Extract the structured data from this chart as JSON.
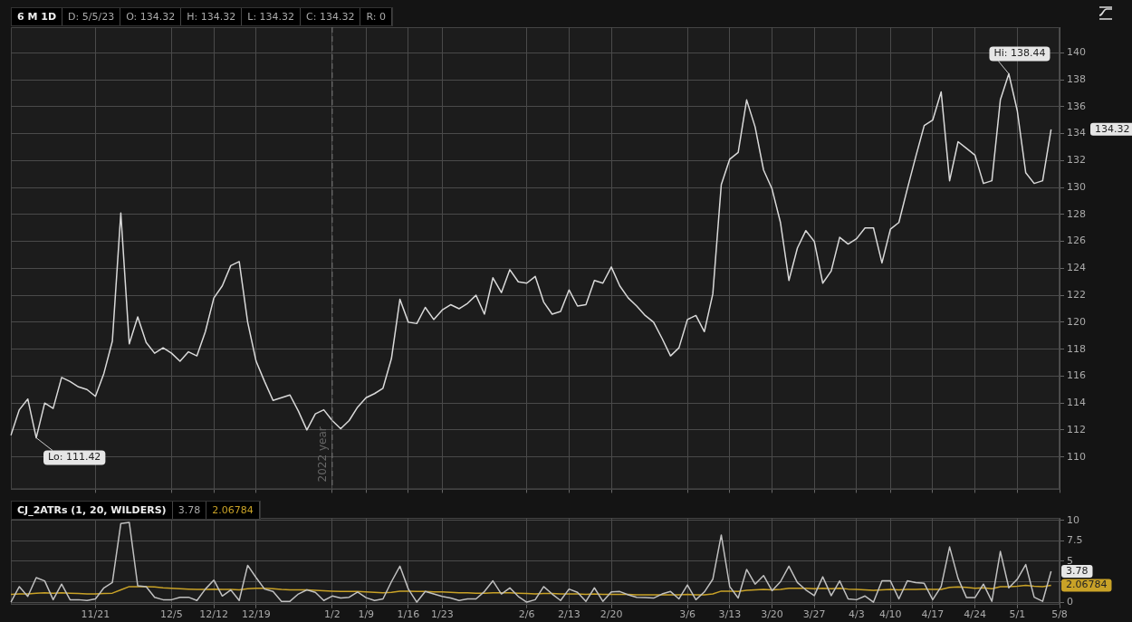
{
  "chart_data": [
    {
      "type": "line",
      "title": "6 M 1D",
      "annotations": [
        "D: 5/5/23",
        "O: 134.32",
        "H: 134.32",
        "L: 134.32",
        "C: 134.32",
        "R: 0",
        "Lo: 111.42",
        "Hi: 138.44",
        "134.32"
      ],
      "categories": [
        null,
        null,
        null,
        null,
        null,
        null,
        null,
        null,
        null,
        null,
        "11/21",
        null,
        null,
        null,
        null,
        null,
        null,
        null,
        null,
        "12/5",
        null,
        null,
        null,
        null,
        "12/12",
        null,
        null,
        null,
        null,
        "12/19",
        null,
        null,
        null,
        null,
        null,
        null,
        null,
        null,
        "1/2",
        null,
        null,
        null,
        "1/9",
        null,
        null,
        null,
        null,
        "1/16",
        null,
        null,
        null,
        "1/23",
        null,
        null,
        null,
        null,
        null,
        null,
        null,
        null,
        null,
        "2/6",
        null,
        null,
        null,
        null,
        "2/13",
        null,
        null,
        null,
        null,
        "2/20",
        null,
        null,
        null,
        null,
        null,
        null,
        null,
        null,
        "3/6",
        null,
        null,
        null,
        null,
        "3/13",
        null,
        null,
        null,
        null,
        "3/20",
        null,
        null,
        null,
        null,
        "3/27",
        null,
        null,
        null,
        null,
        "4/3",
        null,
        null,
        null,
        "4/10",
        null,
        null,
        null,
        null,
        "4/17",
        null,
        null,
        null,
        null,
        "4/24",
        null,
        null,
        null,
        null,
        "5/1",
        null,
        null,
        null,
        null,
        "5/8"
      ],
      "series": [
        {
          "color": "#d9d9d9",
          "values": [
            111.6,
            113.5,
            114.3,
            111.42,
            114.0,
            113.6,
            115.9,
            115.6,
            115.2,
            115.0,
            114.5,
            116.2,
            118.6,
            128.1,
            118.4,
            120.4,
            118.5,
            117.7,
            118.1,
            117.7,
            117.1,
            117.8,
            117.5,
            119.3,
            121.8,
            122.7,
            124.2,
            124.5,
            120.0,
            117.1,
            115.6,
            114.2,
            114.4,
            114.6,
            113.4,
            112.0,
            113.2,
            113.5,
            112.7,
            112.1,
            112.7,
            113.7,
            114.4,
            114.7,
            115.1,
            117.3,
            121.7,
            120.0,
            119.9,
            121.1,
            120.2,
            120.9,
            121.3,
            121.0,
            121.4,
            122.0,
            120.6,
            123.3,
            122.2,
            123.9,
            123.0,
            122.9,
            123.4,
            121.5,
            120.6,
            120.8,
            122.4,
            121.2,
            121.3,
            123.1,
            122.9,
            124.1,
            122.7,
            121.8,
            121.2,
            120.5,
            120.0,
            118.8,
            117.5,
            118.1,
            120.2,
            120.5,
            119.3,
            122.1,
            130.2,
            132.1,
            132.6,
            136.5,
            134.5,
            131.3,
            129.9,
            127.4,
            123.1,
            125.5,
            126.8,
            126.0,
            122.9,
            123.8,
            126.3,
            125.8,
            126.2,
            127.0,
            127.0,
            124.4,
            126.9,
            127.4,
            129.9,
            132.3,
            134.6,
            135.0,
            137.1,
            130.5,
            133.4,
            132.9,
            132.4,
            130.3,
            130.5,
            136.5,
            138.44,
            135.7,
            131.1,
            130.3,
            130.5,
            134.32,
            null
          ]
        }
      ],
      "ylim": [
        107.6,
        141.9
      ],
      "yticks": [
        110,
        112,
        114,
        116,
        118,
        120,
        122,
        124,
        126,
        128,
        130,
        132,
        134,
        136,
        138,
        140
      ],
      "grid": true,
      "legend": false,
      "tick_labels": "y",
      "ref_lines": [
        {
          "axis": "x",
          "value": "1/2",
          "label": "2022 year",
          "line_style": "dashed"
        }
      ]
    },
    {
      "type": "line",
      "title": "CJ_2ATRs (1, 20, WILDERS)",
      "annotations": [
        "3.78",
        "2.06784",
        "3.78",
        "2.06784"
      ],
      "categories": [
        null,
        null,
        null,
        null,
        null,
        null,
        null,
        null,
        null,
        null,
        "11/21",
        null,
        null,
        null,
        null,
        null,
        null,
        null,
        null,
        "12/5",
        null,
        null,
        null,
        null,
        "12/12",
        null,
        null,
        null,
        null,
        "12/19",
        null,
        null,
        null,
        null,
        null,
        null,
        null,
        null,
        "1/2",
        null,
        null,
        null,
        "1/9",
        null,
        null,
        null,
        null,
        "1/16",
        null,
        null,
        null,
        "1/23",
        null,
        null,
        null,
        null,
        null,
        null,
        null,
        null,
        null,
        "2/6",
        null,
        null,
        null,
        null,
        "2/13",
        null,
        null,
        null,
        null,
        "2/20",
        null,
        null,
        null,
        null,
        null,
        null,
        null,
        null,
        "3/6",
        null,
        null,
        null,
        null,
        "3/13",
        null,
        null,
        null,
        null,
        "3/20",
        null,
        null,
        null,
        null,
        "3/27",
        null,
        null,
        null,
        null,
        "4/3",
        null,
        null,
        null,
        "4/10",
        null,
        null,
        null,
        null,
        "4/17",
        null,
        null,
        null,
        null,
        "4/24",
        null,
        null,
        null,
        null,
        "5/1",
        null,
        null,
        null,
        null,
        "5/8"
      ],
      "series": [
        {
          "color": "#c0c0c0",
          "values": [
            0,
            1.9,
            0.7,
            3.0,
            2.6,
            0.3,
            2.2,
            0.3,
            0.3,
            0.2,
            0.4,
            1.75,
            2.4,
            9.6,
            9.75,
            2.0,
            1.9,
            0.6,
            0.3,
            0.3,
            0.6,
            0.6,
            0.2,
            1.6,
            2.7,
            0.75,
            1.5,
            0.2,
            4.5,
            3.0,
            1.6,
            1.3,
            0.1,
            0.1,
            1.0,
            1.5,
            1.2,
            0.2,
            0.75,
            0.5,
            0.6,
            1.25,
            0.55,
            0.2,
            0.4,
            2.5,
            4.4,
            1.6,
            0,
            1.3,
            1.0,
            0.7,
            0.5,
            0.2,
            0.4,
            0.4,
            1.3,
            2.6,
            1.0,
            1.75,
            0.7,
            0,
            0.3,
            1.9,
            1.0,
            0.2,
            1.6,
            1.2,
            0.1,
            1.75,
            0.1,
            1.25,
            1.3,
            0.9,
            0.6,
            0.55,
            0.5,
            1.0,
            1.3,
            0.4,
            2.1,
            0.3,
            1.25,
            2.8,
            8.2,
            1.9,
            0.5,
            4.0,
            2.2,
            3.25,
            1.4,
            2.5,
            4.4,
            2.4,
            1.5,
            0.8,
            3.1,
            0.8,
            2.6,
            0.4,
            0.3,
            0.75,
            0,
            2.6,
            2.6,
            0.4,
            2.6,
            2.4,
            2.3,
            0.3,
            1.9,
            6.75,
            2.9,
            0.55,
            0.55,
            2.2,
            0.1,
            6.2,
            1.75,
            2.8,
            4.6,
            0.6,
            0.1,
            3.78,
            null
          ]
        },
        {
          "color": "#c9a227",
          "values": [
            0.95,
            1.0,
            1.0,
            1.1,
            1.15,
            1.1,
            1.15,
            1.1,
            1.05,
            1.0,
            1.0,
            1.05,
            1.1,
            1.5,
            1.9,
            1.9,
            1.9,
            1.85,
            1.75,
            1.7,
            1.65,
            1.6,
            1.55,
            1.55,
            1.6,
            1.55,
            1.55,
            1.5,
            1.65,
            1.7,
            1.7,
            1.65,
            1.55,
            1.5,
            1.5,
            1.5,
            1.45,
            1.4,
            1.35,
            1.3,
            1.3,
            1.3,
            1.25,
            1.2,
            1.15,
            1.2,
            1.35,
            1.35,
            1.3,
            1.3,
            1.25,
            1.25,
            1.2,
            1.15,
            1.15,
            1.1,
            1.1,
            1.15,
            1.15,
            1.15,
            1.1,
            1.05,
            1.0,
            1.05,
            1.05,
            1.0,
            1.0,
            1.0,
            0.95,
            1.0,
            0.95,
            0.95,
            0.95,
            0.95,
            0.9,
            0.9,
            0.9,
            0.9,
            0.9,
            0.9,
            0.95,
            0.9,
            0.9,
            1.0,
            1.35,
            1.35,
            1.3,
            1.45,
            1.5,
            1.55,
            1.5,
            1.55,
            1.7,
            1.7,
            1.7,
            1.65,
            1.7,
            1.65,
            1.7,
            1.6,
            1.55,
            1.5,
            1.45,
            1.5,
            1.55,
            1.5,
            1.55,
            1.55,
            1.6,
            1.55,
            1.55,
            1.8,
            1.85,
            1.8,
            1.7,
            1.75,
            1.65,
            1.9,
            1.9,
            1.95,
            2.05,
            1.95,
            1.9,
            2.06784,
            null
          ]
        }
      ],
      "ylim": [
        -0.3,
        10.3
      ],
      "yticks": [
        0,
        {
          "value": 2.5,
          "label": null
        },
        5,
        7.5,
        10
      ],
      "grid": true,
      "legend": false
    }
  ]
}
